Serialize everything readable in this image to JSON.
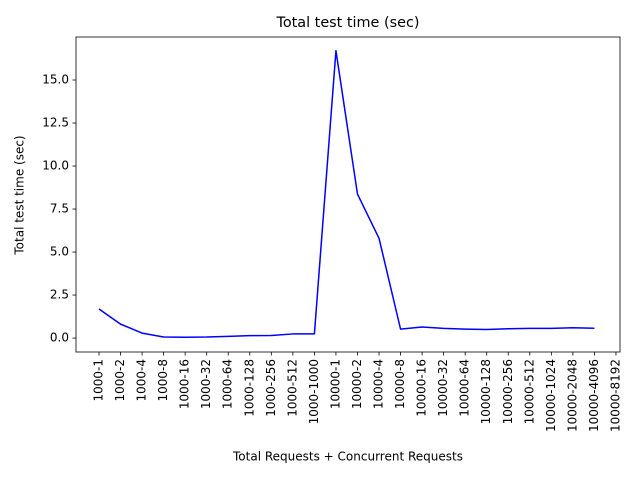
{
  "chart_data": {
    "type": "line",
    "title": "Total test time (sec)",
    "x_label": "Total Requests + Concurrent Requests",
    "y_label": "Total test time (sec)",
    "categories": [
      "1000-1",
      "1000-2",
      "1000-4",
      "1000-8",
      "1000-16",
      "1000-32",
      "1000-64",
      "1000-128",
      "1000-256",
      "1000-512",
      "1000-1000",
      "10000-1",
      "10000-2",
      "10000-4",
      "10000-8",
      "10000-16",
      "10000-32",
      "10000-64",
      "10000-128",
      "10000-256",
      "10000-512",
      "10000-1024",
      "10000-2048",
      "10000-4096",
      "10000-8192"
    ],
    "series": [
      {
        "name": "Total test time (sec)",
        "color": "#0000ff",
        "values": [
          1.69,
          0.81,
          0.29,
          0.06,
          0.05,
          0.06,
          0.1,
          0.14,
          0.15,
          0.24,
          0.24,
          16.7,
          8.37,
          5.8,
          0.52,
          0.64,
          0.56,
          0.52,
          0.5,
          0.54,
          0.56,
          0.56,
          0.6,
          0.57,
          null
        ]
      }
    ],
    "ylim": [
      -0.81,
      17.5
    ],
    "yticks": [
      {
        "value": 0,
        "label": "0.0"
      },
      2.5,
      {
        "value": 5,
        "label": "5.0"
      },
      7.5,
      {
        "value": 10,
        "label": "10.0"
      },
      12.5,
      {
        "value": 15,
        "label": "15.0"
      }
    ],
    "grid": false
  }
}
